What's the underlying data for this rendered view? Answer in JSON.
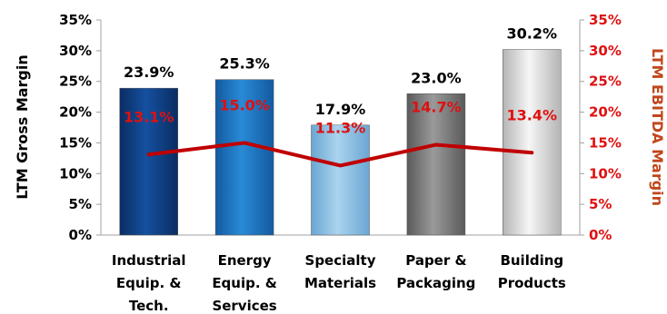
{
  "chart_data": {
    "type": "bar",
    "categories": [
      [
        "Industrial",
        "Equip. &",
        "Tech."
      ],
      [
        "Energy",
        "Equip. &",
        "Services"
      ],
      [
        "Specialty",
        "Materials"
      ],
      [
        "Paper &",
        "Packaging"
      ],
      [
        "Building",
        "Products"
      ]
    ],
    "series": [
      {
        "axis": "left",
        "type": "bar",
        "values": [
          23.9,
          25.3,
          17.9,
          23.0,
          30.2
        ],
        "labels": [
          "23.9%",
          "25.3%",
          "17.9%",
          "23.0%",
          "30.2%"
        ]
      },
      {
        "axis": "right",
        "type": "line",
        "values": [
          13.1,
          15.0,
          11.3,
          14.7,
          13.4
        ],
        "labels": [
          "13.1%",
          "15.0%",
          "11.3%",
          "14.7%",
          "13.4%"
        ]
      }
    ],
    "ylabel": "LTM Gross Margin",
    "y2label": "LTM EBITDA Margin",
    "ylim": [
      0,
      35
    ],
    "y2lim": [
      0,
      35
    ],
    "yticks": [
      "0%",
      "5%",
      "10%",
      "15%",
      "20%",
      "25%",
      "30%",
      "35%"
    ],
    "colors": {
      "bars": [
        "#0f3f82",
        "#1f76c2",
        "#8dc1e4",
        "#7d7d7d",
        "#dcdcdc"
      ],
      "line": "#c00000",
      "right_axis_text": "#e01010"
    },
    "legend": "none",
    "grid": false
  }
}
